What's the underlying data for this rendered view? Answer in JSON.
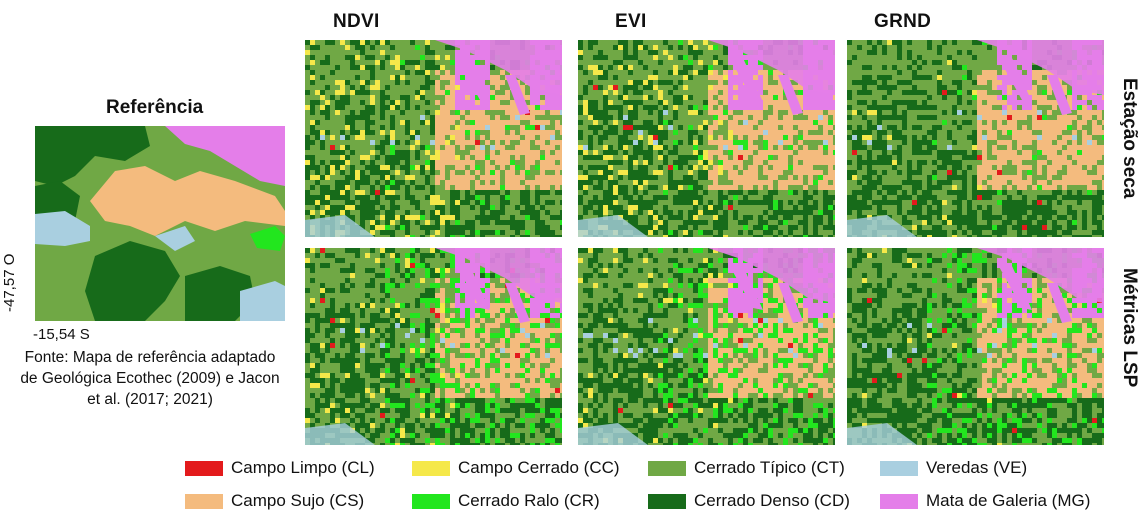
{
  "columns": [
    "NDVI",
    "EVI",
    "GRND"
  ],
  "rows": [
    "Estação seca",
    "Métricas LSP"
  ],
  "reference": {
    "title": "Referência",
    "coord_vertical": "-47,57 O",
    "coord_horizontal": "-15,54 S",
    "source": "Fonte: Mapa de referência adaptado de Geológica Ecothec (2009) e Jacon et al. (2017; 2021)"
  },
  "legend": [
    {
      "label": "Campo Limpo (CL)",
      "color": "#e31a1c"
    },
    {
      "label": "Campo Cerrado (CC)",
      "color": "#f5e84a"
    },
    {
      "label": "Cerrado Típico (CT)",
      "color": "#70a845"
    },
    {
      "label": "Veredas (VE)",
      "color": "#a9cfe0"
    },
    {
      "label": "Campo Sujo (CS)",
      "color": "#f4bb7e"
    },
    {
      "label": "Cerrado Ralo (CR)",
      "color": "#22e61e"
    },
    {
      "label": "Cerrado Denso (CD)",
      "color": "#176b1a"
    },
    {
      "label": "Mata de Galeria (MG)",
      "color": "#e47ee9"
    }
  ]
}
